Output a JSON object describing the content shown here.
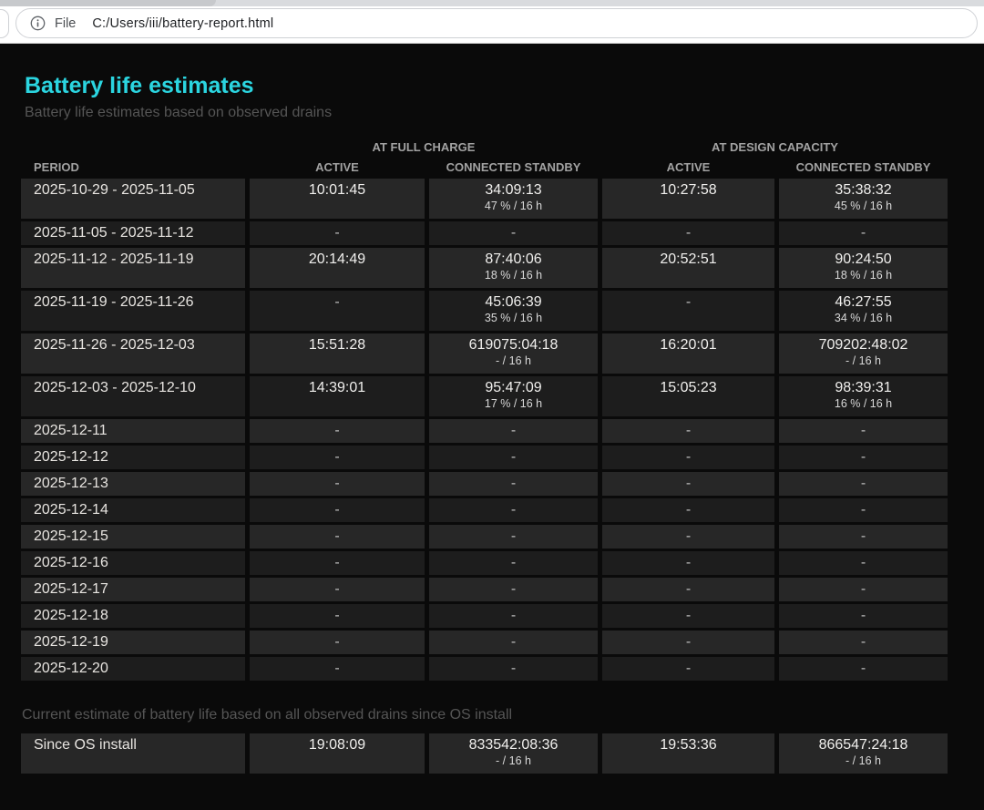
{
  "browser": {
    "scheme_label": "File",
    "url": "C:/Users/iii/battery-report.html"
  },
  "page": {
    "title": "Battery life estimates",
    "subtitle": "Battery life estimates based on observed drains",
    "footer_note": "Current estimate of battery life based on all observed drains since OS install"
  },
  "colors": {
    "accent_title": "#2bd5e0",
    "page_background": "#0a0a0a",
    "row_light": "#272727",
    "row_dark": "#1d1d1d",
    "header_text": "#a2a2a2"
  },
  "table": {
    "group_headers": [
      "AT FULL CHARGE",
      "AT DESIGN CAPACITY"
    ],
    "column_headers": [
      "PERIOD",
      "ACTIVE",
      "CONNECTED STANDBY",
      "ACTIVE",
      "CONNECTED STANDBY"
    ],
    "rows": [
      {
        "period": "2025-10-29 - 2025-11-05",
        "fc_active": "10:01:45",
        "fc_cs": "34:09:13",
        "fc_cs_sub": "47 % / 16 h",
        "dc_active": "10:27:58",
        "dc_cs": "35:38:32",
        "dc_cs_sub": "45 % / 16 h"
      },
      {
        "period": "2025-11-05 - 2025-11-12",
        "fc_active": "-",
        "fc_cs": "-",
        "dc_active": "-",
        "dc_cs": "-"
      },
      {
        "period": "2025-11-12 - 2025-11-19",
        "fc_active": "20:14:49",
        "fc_cs": "87:40:06",
        "fc_cs_sub": "18 % / 16 h",
        "dc_active": "20:52:51",
        "dc_cs": "90:24:50",
        "dc_cs_sub": "18 % / 16 h"
      },
      {
        "period": "2025-11-19 - 2025-11-26",
        "fc_active": "-",
        "fc_cs": "45:06:39",
        "fc_cs_sub": "35 % / 16 h",
        "dc_active": "-",
        "dc_cs": "46:27:55",
        "dc_cs_sub": "34 % / 16 h"
      },
      {
        "period": "2025-11-26 - 2025-12-03",
        "fc_active": "15:51:28",
        "fc_cs": "619075:04:18",
        "fc_cs_sub": "- / 16 h",
        "dc_active": "16:20:01",
        "dc_cs": "709202:48:02",
        "dc_cs_sub": "- / 16 h"
      },
      {
        "period": "2025-12-03 - 2025-12-10",
        "fc_active": "14:39:01",
        "fc_cs": "95:47:09",
        "fc_cs_sub": "17 % / 16 h",
        "dc_active": "15:05:23",
        "dc_cs": "98:39:31",
        "dc_cs_sub": "16 % / 16 h"
      },
      {
        "period": "2025-12-11",
        "fc_active": "-",
        "fc_cs": "-",
        "dc_active": "-",
        "dc_cs": "-"
      },
      {
        "period": "2025-12-12",
        "fc_active": "-",
        "fc_cs": "-",
        "dc_active": "-",
        "dc_cs": "-"
      },
      {
        "period": "2025-12-13",
        "fc_active": "-",
        "fc_cs": "-",
        "dc_active": "-",
        "dc_cs": "-"
      },
      {
        "period": "2025-12-14",
        "fc_active": "-",
        "fc_cs": "-",
        "dc_active": "-",
        "dc_cs": "-"
      },
      {
        "period": "2025-12-15",
        "fc_active": "-",
        "fc_cs": "-",
        "dc_active": "-",
        "dc_cs": "-"
      },
      {
        "period": "2025-12-16",
        "fc_active": "-",
        "fc_cs": "-",
        "dc_active": "-",
        "dc_cs": "-"
      },
      {
        "period": "2025-12-17",
        "fc_active": "-",
        "fc_cs": "-",
        "dc_active": "-",
        "dc_cs": "-"
      },
      {
        "period": "2025-12-18",
        "fc_active": "-",
        "fc_cs": "-",
        "dc_active": "-",
        "dc_cs": "-"
      },
      {
        "period": "2025-12-19",
        "fc_active": "-",
        "fc_cs": "-",
        "dc_active": "-",
        "dc_cs": "-"
      },
      {
        "period": "2025-12-20",
        "fc_active": "-",
        "fc_cs": "-",
        "dc_active": "-",
        "dc_cs": "-"
      }
    ],
    "summary_row": {
      "period": "Since OS install",
      "fc_active": "19:08:09",
      "fc_cs": "833542:08:36",
      "fc_cs_sub": "- / 16 h",
      "dc_active": "19:53:36",
      "dc_cs": "866547:24:18",
      "dc_cs_sub": "- / 16 h"
    }
  }
}
